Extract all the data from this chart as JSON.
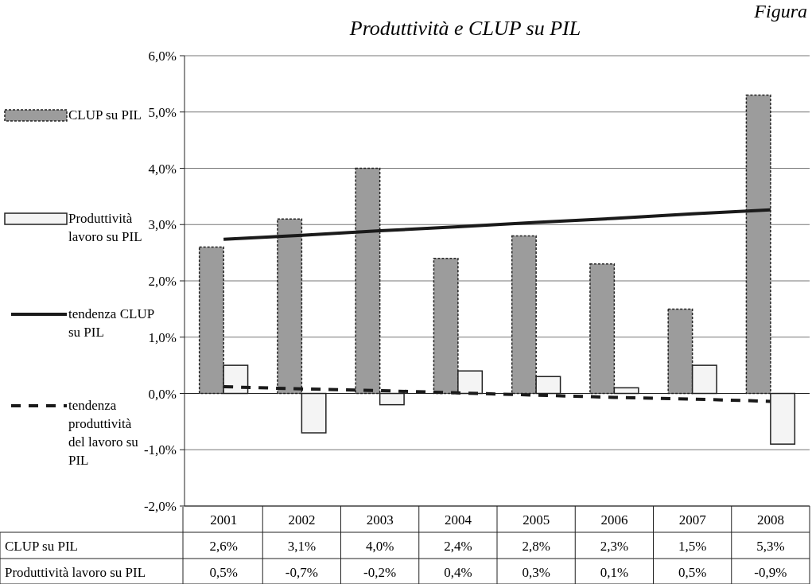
{
  "chart_data": {
    "type": "bar",
    "title": "Produttività e CLUP su PIL",
    "annotations": [
      "Figura"
    ],
    "categories": [
      "2001",
      "2002",
      "2003",
      "2004",
      "2005",
      "2006",
      "2007",
      "2008"
    ],
    "series": [
      {
        "name": "CLUP su PIL",
        "color": "#9c9c9c",
        "values": [
          2.6,
          3.1,
          4.0,
          2.4,
          2.8,
          2.3,
          1.5,
          5.3
        ],
        "value_labels": [
          "2,6%",
          "3,1%",
          "4,0%",
          "2,4%",
          "2,8%",
          "2,3%",
          "1,5%",
          "5,3%"
        ]
      },
      {
        "name": "Produttività lavoro su PIL",
        "color": "#f4f4f4",
        "values": [
          0.5,
          -0.7,
          -0.2,
          0.4,
          0.3,
          0.1,
          0.5,
          -0.9
        ],
        "value_labels": [
          "0,5%",
          "-0,7%",
          "-0,2%",
          "0,4%",
          "0,3%",
          "0,1%",
          "0,5%",
          "-0,9%"
        ]
      },
      {
        "name": "tendenza CLUP su PIL",
        "type": "line",
        "color": "#1a1a1a",
        "line_style": "solid",
        "values": [
          2.74,
          2.81,
          2.89,
          2.96,
          3.04,
          3.11,
          3.19,
          3.26
        ]
      },
      {
        "name": "tendenza produttività del lavoro su PIL",
        "type": "line",
        "color": "#1a1a1a",
        "line_style": "dashed",
        "values": [
          0.12,
          0.08,
          0.05,
          0.01,
          -0.03,
          -0.07,
          -0.1,
          -0.14
        ]
      }
    ],
    "ylim": [
      -2,
      6
    ],
    "yticks": [
      {
        "value": -2,
        "label": "-2,0%"
      },
      {
        "value": -1,
        "label": "-1,0%"
      },
      {
        "value": 0,
        "label": "0,0%"
      },
      {
        "value": 1,
        "label": "1,0%"
      },
      {
        "value": 2,
        "label": "2,0%"
      },
      {
        "value": 3,
        "label": "3,0%"
      },
      {
        "value": 4,
        "label": "4,0%"
      },
      {
        "value": 5,
        "label": "5,0%"
      },
      {
        "value": 6,
        "label": "6,0%"
      }
    ],
    "grid": "y",
    "legend": "left"
  }
}
